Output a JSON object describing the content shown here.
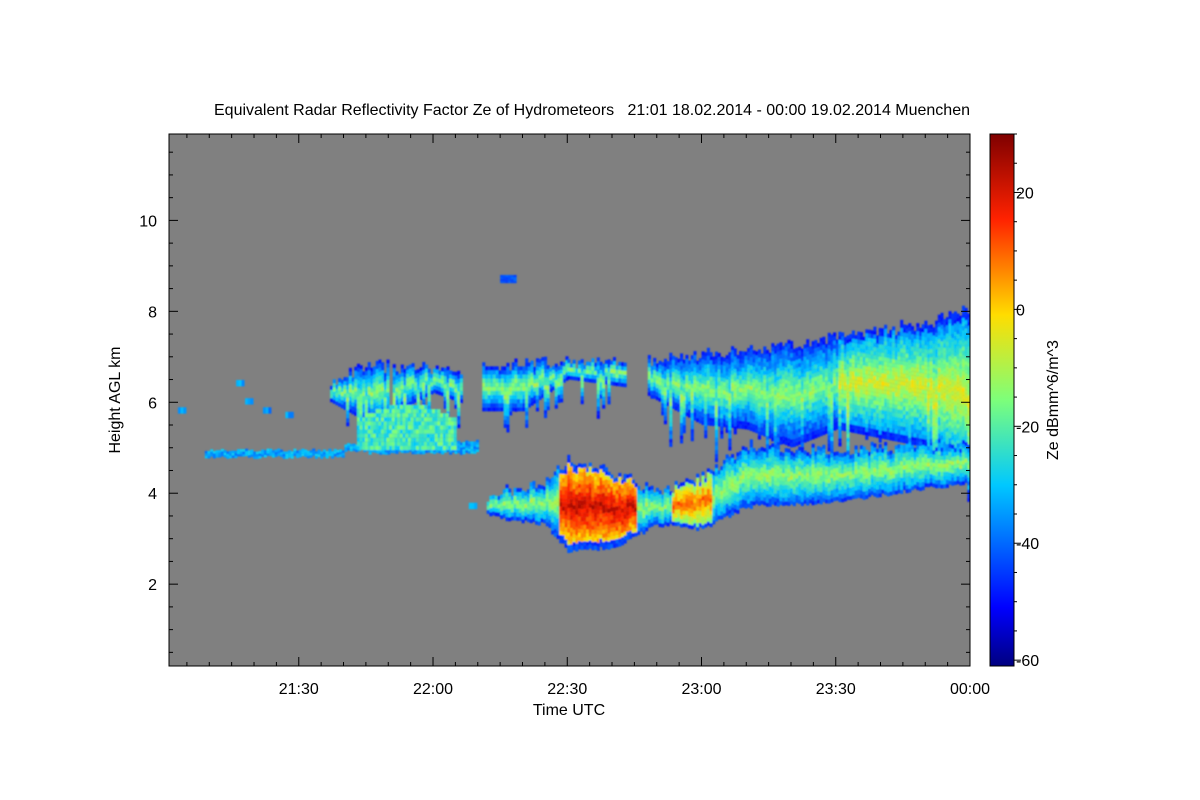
{
  "chart_data": {
    "type": "heatmap",
    "title": "Equivalent Radar Reflectivity Factor Ze of Hydrometeors   21:01 18.02.2014 - 00:00 19.02.2014 Muenchen",
    "xlabel": "Time UTC",
    "ylabel": "Height AGL km",
    "x_unit": "UTC time",
    "xlim": [
      "21:01",
      "00:00"
    ],
    "ylim": [
      0.2,
      11.9
    ],
    "x_ticks": [
      "21:30",
      "22:00",
      "22:30",
      "23:00",
      "23:30",
      "00:00"
    ],
    "y_ticks": [
      2,
      4,
      6,
      8,
      10
    ],
    "background_color": "#808080",
    "colorbar": {
      "label": "Ze dBmm^6/m^3",
      "range": [
        -61,
        30
      ],
      "ticks": [
        -60,
        -40,
        -20,
        0,
        20
      ],
      "colormap": "jet"
    },
    "features": [
      {
        "name": "upper cloud layer",
        "t_start": "21:37",
        "t_end": "00:00",
        "base_km": [
          5.3,
          4.1
        ],
        "top_km": [
          6.8,
          8.0
        ],
        "peak_ze": -15
      },
      {
        "name": "thin layer",
        "t_start": "21:09",
        "t_end": "22:10",
        "height_km": 4.85,
        "peak_ze": -35
      },
      {
        "name": "lower precipitating layer",
        "t_start": "22:12",
        "t_end": "23:59",
        "base_km": 2.6,
        "top_km": 4.8,
        "peak_ze": 12
      },
      {
        "name": "isolated echo",
        "t": "22:17",
        "height_km": 8.7,
        "peak_ze": -45
      }
    ]
  },
  "colors": {
    "plot_background": "#808080",
    "figure_background": "#ffffff"
  }
}
